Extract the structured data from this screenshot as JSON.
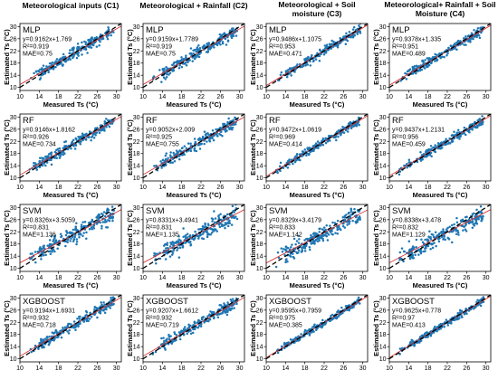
{
  "column_titles": [
    [
      "Meteorological inputs (C1)"
    ],
    [
      "Meteorological + Rainfall (C2)"
    ],
    [
      "Meteorological + Soil",
      "moisture (C3)"
    ],
    [
      "Meteorological+ Rainfall + Soil",
      "Moisture (C4)"
    ]
  ],
  "colors": {
    "points": "#1f77b4",
    "line": "#000000",
    "fit": "#d62728"
  },
  "chart_data": {
    "type": "scatter",
    "xlabel": "Measured Ts (°C)",
    "ylabel": "Estimated Ts (°C)",
    "xlim": [
      10,
      31
    ],
    "ylim": [
      9,
      31
    ],
    "xticks": [
      10,
      14,
      18,
      22,
      26,
      30
    ],
    "yticks": [
      10,
      14,
      18,
      22,
      26,
      30
    ],
    "reference_line": "1:1",
    "panels": [
      [
        {
          "model": "MLP",
          "eq": "y=0.9162x+1.769",
          "r2": "R²=0.919",
          "mae": "MAE=0.75",
          "slope": 0.9162,
          "intercept": 1.769
        },
        {
          "model": "MLP",
          "eq": "y=0.9159x+1.7789",
          "r2": "R²=0.919",
          "mae": "MAE=0.75",
          "slope": 0.9159,
          "intercept": 1.7789
        },
        {
          "model": "MLP",
          "eq": "y=0.9486x+1.1075",
          "r2": "R²=0.953",
          "mae": "MAE=0.471",
          "slope": 0.9486,
          "intercept": 1.1075
        },
        {
          "model": "MLP",
          "eq": "y=0.9378x+1.335",
          "r2": "R²=0.951",
          "mae": "MAE=0.489",
          "slope": 0.9378,
          "intercept": 1.335
        }
      ],
      [
        {
          "model": "RF",
          "eq": "y=0.9146x+1.8162",
          "r2": "R²=0.926",
          "mae": "MAE=0.734",
          "slope": 0.9146,
          "intercept": 1.8162
        },
        {
          "model": "RF",
          "eq": "y=0.9052x+2.009",
          "r2": "R²=0.925",
          "mae": "MAE=0.755",
          "slope": 0.9052,
          "intercept": 2.009
        },
        {
          "model": "RF",
          "eq": "y=0.9472x+1.0619",
          "r2": "R²=0.969",
          "mae": "MAE=0.414",
          "slope": 0.9472,
          "intercept": 1.0619
        },
        {
          "model": "RF",
          "eq": "y=0.9437x+1.2131",
          "r2": "R²=0.956",
          "mae": "MAE=0.459",
          "slope": 0.9437,
          "intercept": 1.2131
        }
      ],
      [
        {
          "model": "SVM",
          "eq": "y=0.8326x+3.5059",
          "r2": "R²=0.831",
          "mae": "MAE=1.136",
          "slope": 0.8326,
          "intercept": 3.5059
        },
        {
          "model": "SVM",
          "eq": "y=0.8331x+3.4941",
          "r2": "R²=0.831",
          "mae": "MAE=1.135",
          "slope": 0.8331,
          "intercept": 3.4941
        },
        {
          "model": "SVM",
          "eq": "y=0.8329x+3.4179",
          "r2": "R²=0.833",
          "mae": "MAE=1.142",
          "slope": 0.8329,
          "intercept": 3.4179
        },
        {
          "model": "SVM",
          "eq": "y=0.8338x+3.478",
          "r2": "R²=0.832",
          "mae": "MAE=1.129",
          "slope": 0.8338,
          "intercept": 3.478
        }
      ],
      [
        {
          "model": "XGBOOST",
          "eq": "y=0.9194x+1.6931",
          "r2": "R²=0.932",
          "mae": "MAE=0.718",
          "slope": 0.9194,
          "intercept": 1.6931
        },
        {
          "model": "XGBOOST",
          "eq": "y=0.9207x+1.6612",
          "r2": "R²=0.932",
          "mae": "MAE=0.719",
          "slope": 0.9207,
          "intercept": 1.6612
        },
        {
          "model": "XGBOOST",
          "eq": "y=0.9595x+0.7959",
          "r2": "R²=0.975",
          "mae": "MAE=0.385",
          "slope": 0.9595,
          "intercept": 0.7959
        },
        {
          "model": "XGBOOST",
          "eq": "y=0.9625x+0.778",
          "r2": "R²=0.97",
          "mae": "MAE=0.413",
          "slope": 0.9625,
          "intercept": 0.778
        }
      ]
    ]
  }
}
